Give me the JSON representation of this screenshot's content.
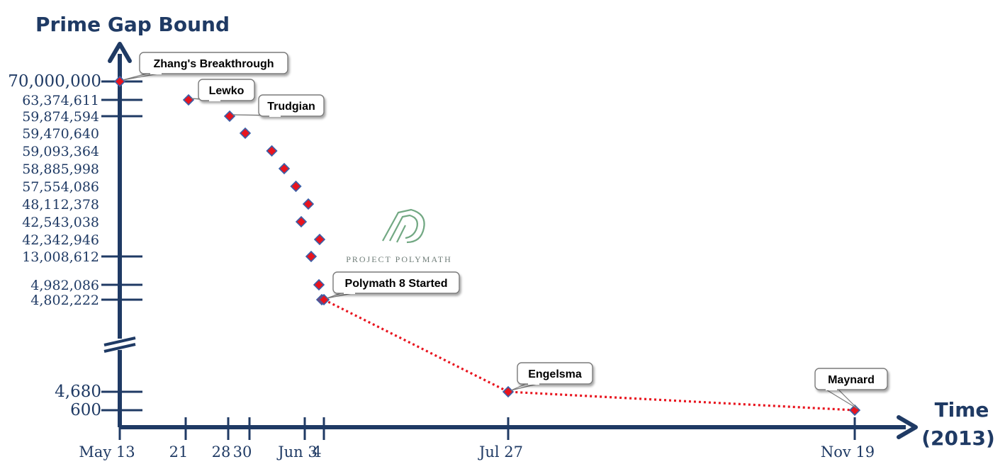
{
  "chart_data": {
    "type": "scatter",
    "ylabel": "Prime Gap Bound",
    "xlabel_line1": "Time",
    "xlabel_line2": "(2013)",
    "y_axis_break": true,
    "y_tick_labels": [
      "70,000,000",
      "63,374,611",
      "59,874,594",
      "59,470,640",
      "59,093,364",
      "58,885,998",
      "57,554,086",
      "48,112,378",
      "42,543,038",
      "42,342,946",
      "13,008,612",
      "4,982,086",
      "4,802,222",
      "4,680",
      "600"
    ],
    "x_tick_labels": [
      "May 13",
      "21",
      "28",
      "30",
      "Jun 3",
      "4",
      "Jul 27",
      "Nov 19"
    ],
    "points": [
      {
        "date": "2013-05-13",
        "value": 70000000
      },
      {
        "date": "2013-05-21",
        "value": 63374611
      },
      {
        "date": "2013-05-28",
        "value": 59874594
      },
      {
        "date": "2013-05-30",
        "value": 59470640
      },
      {
        "date": "2013-05-31",
        "value": 59093364
      },
      {
        "date": "2013-06-01",
        "value": 58885998
      },
      {
        "date": "2013-06-02",
        "value": 57554086
      },
      {
        "date": "2013-06-03",
        "value": 48112378
      },
      {
        "date": "2013-06-03",
        "value": 42543038
      },
      {
        "date": "2013-06-04",
        "value": 42342946
      },
      {
        "date": "2013-06-04",
        "value": 13008612
      },
      {
        "date": "2013-06-04",
        "value": 4982086
      },
      {
        "date": "2013-06-04",
        "value": 4802222
      },
      {
        "date": "2013-06-04",
        "value": 4802222
      },
      {
        "date": "2013-07-27",
        "value": 4680
      },
      {
        "date": "2013-11-19",
        "value": 600
      }
    ],
    "callouts": [
      "Zhang's Breakthrough",
      "Lewko",
      "Trudgian",
      "Polymath 8 Started",
      "Engelsma",
      "Maynard"
    ],
    "watermark": "PROJECT POLYMATH",
    "colors": {
      "axis": "#1f3a64",
      "point": "#e8141e",
      "point_border": "#3b5fa8",
      "line": "#e8141e",
      "watermark": "#5a9a6e"
    }
  }
}
